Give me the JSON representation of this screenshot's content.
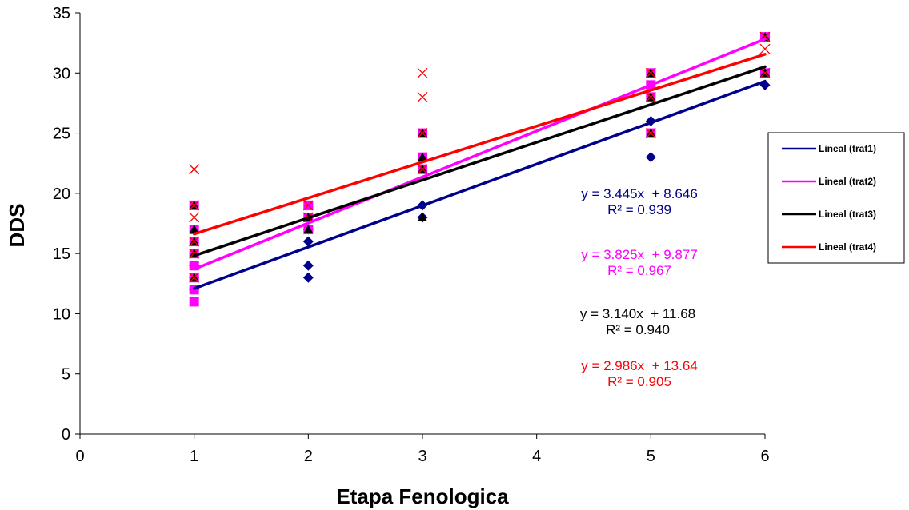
{
  "chart_data": {
    "type": "scatter",
    "xlabel": "Etapa Fenologica",
    "ylabel": "DDS",
    "xlim": [
      0,
      6
    ],
    "ylim": [
      0,
      35
    ],
    "xticks": [
      0,
      1,
      2,
      3,
      4,
      5,
      6
    ],
    "yticks": [
      0,
      5,
      10,
      15,
      20,
      25,
      30,
      35
    ],
    "grid": false,
    "legend_position": "right",
    "series": [
      {
        "id": "trat1",
        "color": "#00008b",
        "marker": "diamond",
        "points": [
          [
            1,
            12
          ],
          [
            1,
            13
          ],
          [
            1,
            14
          ],
          [
            1,
            15
          ],
          [
            2,
            13
          ],
          [
            2,
            14
          ],
          [
            2,
            16
          ],
          [
            2,
            17
          ],
          [
            3,
            18
          ],
          [
            3,
            19
          ],
          [
            5,
            23
          ],
          [
            5,
            25
          ],
          [
            5,
            26
          ],
          [
            6,
            29
          ]
        ],
        "trend": {
          "legend": "Lineal (trat1)",
          "slope": 3.445,
          "intercept": 8.646,
          "equation": "y = 3.445x  + 8.646",
          "r2": "R² = 0.939"
        }
      },
      {
        "id": "trat2",
        "color": "#ff00ff",
        "marker": "square",
        "points": [
          [
            1,
            11
          ],
          [
            1,
            12
          ],
          [
            1,
            13
          ],
          [
            1,
            14
          ],
          [
            1,
            15
          ],
          [
            1,
            16
          ],
          [
            1,
            17
          ],
          [
            1,
            19
          ],
          [
            2,
            17
          ],
          [
            2,
            18
          ],
          [
            2,
            19
          ],
          [
            3,
            22
          ],
          [
            3,
            23
          ],
          [
            3,
            25
          ],
          [
            5,
            25
          ],
          [
            5,
            28
          ],
          [
            5,
            29
          ],
          [
            5,
            30
          ],
          [
            6,
            30
          ],
          [
            6,
            33
          ]
        ],
        "trend": {
          "legend": "Lineal (trat2)",
          "slope": 3.825,
          "intercept": 9.877,
          "equation": "y = 3.825x  + 9.877",
          "r2": "R² = 0.967"
        }
      },
      {
        "id": "trat3",
        "color": "#000000",
        "marker": "triangle",
        "points": [
          [
            1,
            13
          ],
          [
            1,
            15
          ],
          [
            1,
            16
          ],
          [
            1,
            17
          ],
          [
            1,
            19
          ],
          [
            2,
            17
          ],
          [
            2,
            18
          ],
          [
            3,
            18
          ],
          [
            3,
            22
          ],
          [
            3,
            23
          ],
          [
            3,
            25
          ],
          [
            5,
            25
          ],
          [
            5,
            28
          ],
          [
            5,
            30
          ],
          [
            6,
            30
          ],
          [
            6,
            33
          ]
        ],
        "trend": {
          "legend": "Lineal (trat3)",
          "slope": 3.14,
          "intercept": 11.68,
          "equation": "y = 3.140x  + 11.68",
          "r2": "R² = 0.940"
        }
      },
      {
        "id": "trat4",
        "color": "#ff0000",
        "marker": "x",
        "points": [
          [
            1,
            13
          ],
          [
            1,
            15
          ],
          [
            1,
            16
          ],
          [
            1,
            18
          ],
          [
            1,
            19
          ],
          [
            1,
            22
          ],
          [
            2,
            18
          ],
          [
            2,
            19
          ],
          [
            3,
            22
          ],
          [
            3,
            25
          ],
          [
            3,
            28
          ],
          [
            3,
            30
          ],
          [
            5,
            25
          ],
          [
            5,
            28
          ],
          [
            5,
            30
          ],
          [
            6,
            30
          ],
          [
            6,
            32
          ],
          [
            6,
            33
          ]
        ],
        "trend": {
          "legend": "Lineal (trat4)",
          "slope": 2.986,
          "intercept": 13.64,
          "equation": "y = 2.986x  + 13.64",
          "r2": "R² = 0.905"
        }
      }
    ]
  }
}
